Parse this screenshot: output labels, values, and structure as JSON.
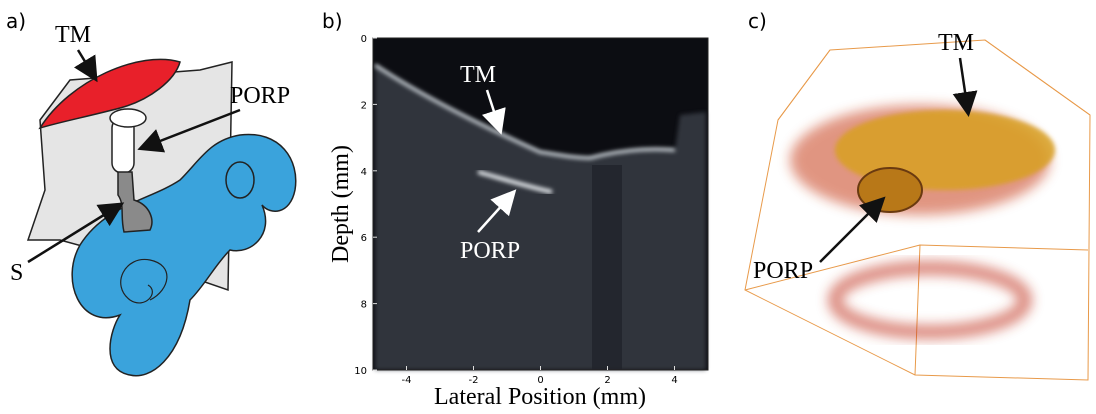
{
  "panels": {
    "a": {
      "label": "a)",
      "annotations": [
        "TM",
        "PORP",
        "S"
      ]
    },
    "b": {
      "label": "b)",
      "annotations": [
        "TM",
        "PORP"
      ],
      "x_label": "Lateral Position (mm)",
      "y_label": "Depth (mm)",
      "xlim": [
        -5,
        5
      ],
      "ylim": [
        0,
        10
      ],
      "xticks": [
        -4,
        -2,
        0,
        2,
        4
      ],
      "yticks": [
        0,
        2,
        4,
        6,
        8,
        10
      ]
    },
    "c": {
      "label": "c)",
      "annotations": [
        "TM",
        "PORP"
      ]
    }
  }
}
